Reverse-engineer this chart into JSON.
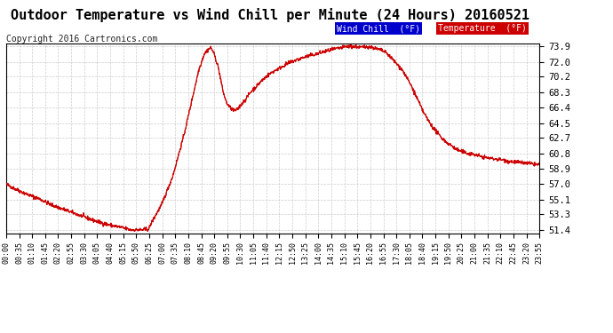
{
  "title": "Outdoor Temperature vs Wind Chill per Minute (24 Hours) 20160521",
  "copyright": "Copyright 2016 Cartronics.com",
  "background_color": "#ffffff",
  "plot_bg_color": "#ffffff",
  "grid_color": "#cccccc",
  "line_color": "#cc0000",
  "legend_wind_chill_bg": "#0000cc",
  "legend_temp_bg": "#cc0000",
  "legend_wind_chill_text": "Wind Chill  (°F)",
  "legend_temp_text": "Temperature  (°F)",
  "yticks": [
    51.4,
    53.3,
    55.1,
    57.0,
    58.9,
    60.8,
    62.7,
    64.5,
    66.4,
    68.3,
    70.2,
    72.0,
    73.9
  ],
  "ylim": [
    51.0,
    74.3
  ],
  "n_points": 1440,
  "xtick_labels": [
    "00:00",
    "00:35",
    "01:10",
    "01:45",
    "02:20",
    "02:55",
    "03:30",
    "04:05",
    "04:40",
    "05:15",
    "05:50",
    "06:25",
    "07:00",
    "07:35",
    "08:10",
    "08:45",
    "09:20",
    "09:55",
    "10:30",
    "11:05",
    "11:40",
    "12:15",
    "12:50",
    "13:25",
    "14:00",
    "14:35",
    "15:10",
    "15:45",
    "16:20",
    "16:55",
    "17:30",
    "18:05",
    "18:40",
    "19:15",
    "19:50",
    "20:25",
    "21:00",
    "21:35",
    "22:10",
    "22:45",
    "23:20",
    "23:55"
  ],
  "title_fontsize": 11,
  "axis_fontsize": 7.5,
  "copyright_fontsize": 7,
  "legend_fontsize": 7
}
